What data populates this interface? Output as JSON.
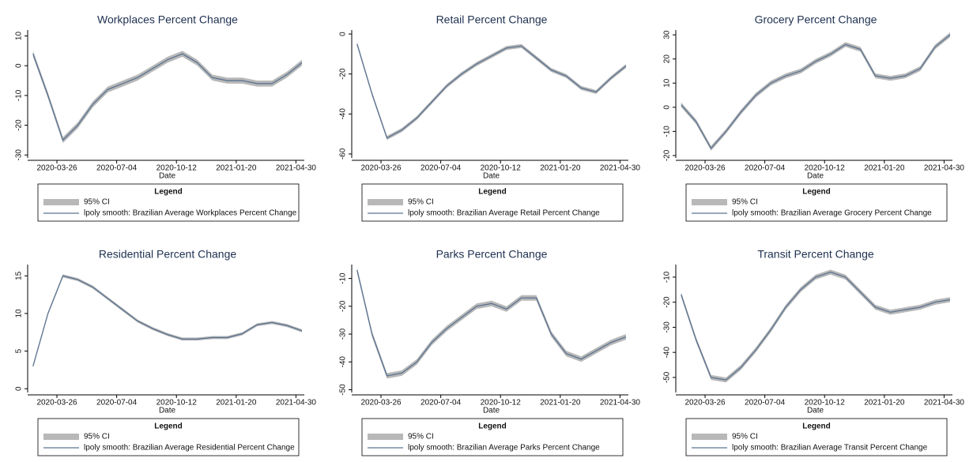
{
  "chart_data": [
    {
      "type": "line",
      "title": "Workplaces Percent Change",
      "xlabel": "Date",
      "legend_title": "Legend",
      "x": [
        "2020-02-15",
        "2020-03-11",
        "2020-04-05",
        "2020-04-30",
        "2020-05-25",
        "2020-06-19",
        "2020-07-14",
        "2020-08-08",
        "2020-09-02",
        "2020-09-27",
        "2020-10-22",
        "2020-11-16",
        "2020-12-11",
        "2021-01-05",
        "2021-01-30",
        "2021-02-24",
        "2021-03-21",
        "2021-04-15",
        "2021-05-10"
      ],
      "xlim": [
        "2020-02-10",
        "2021-05-14"
      ],
      "xticks": [
        "2020-03-26",
        "2020-07-04",
        "2020-10-12",
        "2021-01-20",
        "2021-04-30"
      ],
      "ylim": [
        -31,
        12
      ],
      "yticks": [
        10,
        0,
        -10,
        -20,
        -30
      ],
      "series": [
        {
          "name": "95% CI",
          "color": "#b8b8b8",
          "lower": [
            3,
            -11,
            -26,
            -21,
            -14,
            -9,
            -7,
            -5,
            -2,
            1,
            3,
            0,
            -5,
            -6,
            -6,
            -7,
            -7,
            -4,
            0
          ],
          "upper": [
            5,
            -9,
            -24,
            -19,
            -12,
            -7,
            -5,
            -3,
            0,
            3,
            5,
            2,
            -3,
            -4,
            -4,
            -5,
            -5,
            -2,
            2
          ]
        },
        {
          "name": "lpoly smooth: Brazilian Average Workplaces Percent Change",
          "color": "#5a7391",
          "values": [
            4,
            -10,
            -25,
            -20,
            -13,
            -8,
            -6,
            -4,
            -1,
            2,
            4,
            1,
            -4,
            -5,
            -5,
            -6,
            -6,
            -3,
            1
          ]
        }
      ]
    },
    {
      "type": "line",
      "title": "Retail Percent Change",
      "xlabel": "Date",
      "legend_title": "Legend",
      "x": [
        "2020-02-15",
        "2020-03-11",
        "2020-04-05",
        "2020-04-30",
        "2020-05-25",
        "2020-06-19",
        "2020-07-14",
        "2020-08-08",
        "2020-09-02",
        "2020-09-27",
        "2020-10-22",
        "2020-11-16",
        "2020-12-11",
        "2021-01-05",
        "2021-01-30",
        "2021-02-24",
        "2021-03-21",
        "2021-04-15",
        "2021-05-10"
      ],
      "xlim": [
        "2020-02-10",
        "2021-05-14"
      ],
      "xticks": [
        "2020-03-26",
        "2020-07-04",
        "2020-10-12",
        "2021-01-20",
        "2021-04-30"
      ],
      "ylim": [
        -62,
        2
      ],
      "yticks": [
        0,
        -20,
        -40,
        -60
      ],
      "series": [
        {
          "name": "95% CI",
          "color": "#b8b8b8",
          "lower": [
            -6,
            -31,
            -53,
            -49,
            -43,
            -35,
            -27,
            -21,
            -16,
            -12,
            -8,
            -7,
            -13,
            -19,
            -22,
            -28,
            -30,
            -23,
            -17
          ],
          "upper": [
            -4,
            -29,
            -51,
            -47,
            -41,
            -33,
            -25,
            -19,
            -14,
            -10,
            -6,
            -5,
            -11,
            -17,
            -20,
            -26,
            -28,
            -21,
            -15
          ]
        },
        {
          "name": "lpoly smooth: Brazilian Average Retail Percent Change",
          "color": "#5a7391",
          "values": [
            -5,
            -30,
            -52,
            -48,
            -42,
            -34,
            -26,
            -20,
            -15,
            -11,
            -7,
            -6,
            -12,
            -18,
            -21,
            -27,
            -29,
            -22,
            -16
          ]
        }
      ]
    },
    {
      "type": "line",
      "title": "Grocery Percent Change",
      "xlabel": "Date",
      "legend_title": "Legend",
      "x": [
        "2020-02-15",
        "2020-03-11",
        "2020-04-05",
        "2020-04-30",
        "2020-05-25",
        "2020-06-19",
        "2020-07-14",
        "2020-08-08",
        "2020-09-02",
        "2020-09-27",
        "2020-10-22",
        "2020-11-16",
        "2020-12-11",
        "2021-01-05",
        "2021-01-30",
        "2021-02-24",
        "2021-03-21",
        "2021-04-15",
        "2021-05-10"
      ],
      "xlim": [
        "2020-02-10",
        "2021-05-14"
      ],
      "xticks": [
        "2020-03-26",
        "2020-07-04",
        "2020-10-12",
        "2021-01-20",
        "2021-04-30"
      ],
      "ylim": [
        -21,
        32
      ],
      "yticks": [
        30,
        20,
        10,
        0,
        -10,
        -20
      ],
      "series": [
        {
          "name": "95% CI",
          "color": "#b8b8b8",
          "lower": [
            0,
            -7,
            -18,
            -11,
            -3,
            4,
            9,
            12,
            14,
            18,
            21,
            25,
            23,
            12,
            11,
            12,
            15,
            24,
            29
          ],
          "upper": [
            2,
            -5,
            -16,
            -9,
            -1,
            6,
            11,
            14,
            16,
            20,
            23,
            27,
            25,
            14,
            13,
            14,
            17,
            26,
            31
          ]
        },
        {
          "name": "lpoly smooth: Brazilian Average Grocery Percent Change",
          "color": "#5a7391",
          "values": [
            1,
            -6,
            -17,
            -10,
            -2,
            5,
            10,
            13,
            15,
            19,
            22,
            26,
            24,
            13,
            12,
            13,
            16,
            25,
            30
          ]
        }
      ]
    },
    {
      "type": "line",
      "title": "Residential Percent Change",
      "xlabel": "Date",
      "legend_title": "Legend",
      "x": [
        "2020-02-15",
        "2020-03-11",
        "2020-04-05",
        "2020-04-30",
        "2020-05-25",
        "2020-06-19",
        "2020-07-14",
        "2020-08-08",
        "2020-09-02",
        "2020-09-27",
        "2020-10-22",
        "2020-11-16",
        "2020-12-11",
        "2021-01-05",
        "2021-01-30",
        "2021-02-24",
        "2021-03-21",
        "2021-04-15",
        "2021-05-10"
      ],
      "xlim": [
        "2020-02-10",
        "2021-05-14"
      ],
      "xticks": [
        "2020-03-26",
        "2020-07-04",
        "2020-10-12",
        "2021-01-20",
        "2021-04-30"
      ],
      "ylim": [
        -0.5,
        16.5
      ],
      "yticks": [
        0,
        5,
        10,
        15
      ],
      "series": [
        {
          "name": "95% CI",
          "color": "#b8b8b8",
          "lower": [
            2.8,
            9.8,
            14.8,
            14.3,
            13.3,
            11.8,
            10.3,
            8.8,
            7.8,
            7,
            6.4,
            6.4,
            6.6,
            6.6,
            7.1,
            8.3,
            8.6,
            8.2,
            7.5
          ],
          "upper": [
            3.2,
            10.2,
            15.2,
            14.7,
            13.7,
            12.2,
            10.7,
            9.2,
            8.2,
            7.4,
            6.8,
            6.8,
            7,
            7,
            7.5,
            8.7,
            9,
            8.6,
            7.9
          ]
        },
        {
          "name": "lpoly smooth: Brazilian Average Residential Percent Change",
          "color": "#5a7391",
          "values": [
            3,
            10,
            15,
            14.5,
            13.5,
            12,
            10.5,
            9,
            8,
            7.2,
            6.6,
            6.6,
            6.8,
            6.8,
            7.3,
            8.5,
            8.8,
            8.4,
            7.7
          ]
        }
      ]
    },
    {
      "type": "line",
      "title": "Parks Percent Change",
      "xlabel": "Date",
      "legend_title": "Legend",
      "x": [
        "2020-02-15",
        "2020-03-11",
        "2020-04-05",
        "2020-04-30",
        "2020-05-25",
        "2020-06-19",
        "2020-07-14",
        "2020-08-08",
        "2020-09-02",
        "2020-09-27",
        "2020-10-22",
        "2020-11-16",
        "2020-12-11",
        "2021-01-05",
        "2021-01-30",
        "2021-02-24",
        "2021-03-21",
        "2021-04-15",
        "2021-05-10"
      ],
      "xlim": [
        "2020-02-10",
        "2021-05-14"
      ],
      "xticks": [
        "2020-03-26",
        "2020-07-04",
        "2020-10-12",
        "2021-01-20",
        "2021-04-30"
      ],
      "ylim": [
        -51,
        -5
      ],
      "yticks": [
        -10,
        -20,
        -30,
        -40,
        -50
      ],
      "series": [
        {
          "name": "95% CI",
          "color": "#b8b8b8",
          "lower": [
            -8,
            -31,
            -46,
            -45,
            -41,
            -34,
            -29,
            -25,
            -21,
            -20,
            -22,
            -18,
            -18,
            -31,
            -38,
            -40,
            -37,
            -34,
            -32
          ],
          "upper": [
            -6,
            -29,
            -44,
            -43,
            -39,
            -32,
            -27,
            -23,
            -19,
            -18,
            -20,
            -16,
            -16,
            -29,
            -36,
            -38,
            -35,
            -32,
            -30
          ]
        },
        {
          "name": "lpoly smooth: Brazilian Average Parks Percent Change",
          "color": "#5a7391",
          "values": [
            -7,
            -30,
            -45,
            -44,
            -40,
            -33,
            -28,
            -24,
            -20,
            -19,
            -21,
            -17,
            -17,
            -30,
            -37,
            -39,
            -36,
            -33,
            -31
          ]
        }
      ]
    },
    {
      "type": "line",
      "title": "Transit Percent Change",
      "xlabel": "Date",
      "legend_title": "Legend",
      "x": [
        "2020-02-15",
        "2020-03-11",
        "2020-04-05",
        "2020-04-30",
        "2020-05-25",
        "2020-06-19",
        "2020-07-14",
        "2020-08-08",
        "2020-09-02",
        "2020-09-27",
        "2020-10-22",
        "2020-11-16",
        "2020-12-11",
        "2021-01-05",
        "2021-01-30",
        "2021-02-24",
        "2021-03-21",
        "2021-04-15",
        "2021-05-10"
      ],
      "xlim": [
        "2020-02-10",
        "2021-05-14"
      ],
      "xticks": [
        "2020-03-26",
        "2020-07-04",
        "2020-10-12",
        "2021-01-20",
        "2021-04-30"
      ],
      "ylim": [
        -56,
        -5
      ],
      "yticks": [
        -10,
        -20,
        -30,
        -40,
        -50
      ],
      "series": [
        {
          "name": "95% CI",
          "color": "#b8b8b8",
          "lower": [
            -18,
            -36,
            -51,
            -52,
            -47,
            -40,
            -32,
            -23,
            -16,
            -11,
            -9,
            -11,
            -17,
            -23,
            -25,
            -24,
            -23,
            -21,
            -20
          ],
          "upper": [
            -16,
            -34,
            -49,
            -50,
            -45,
            -38,
            -30,
            -21,
            -14,
            -9,
            -7,
            -9,
            -15,
            -21,
            -23,
            -22,
            -21,
            -19,
            -18
          ]
        },
        {
          "name": "lpoly smooth: Brazilian Average Transit Percent Change",
          "color": "#5a7391",
          "values": [
            -17,
            -35,
            -50,
            -51,
            -46,
            -39,
            -31,
            -22,
            -15,
            -10,
            -8,
            -10,
            -16,
            -22,
            -24,
            -23,
            -22,
            -20,
            -19
          ]
        }
      ]
    }
  ]
}
